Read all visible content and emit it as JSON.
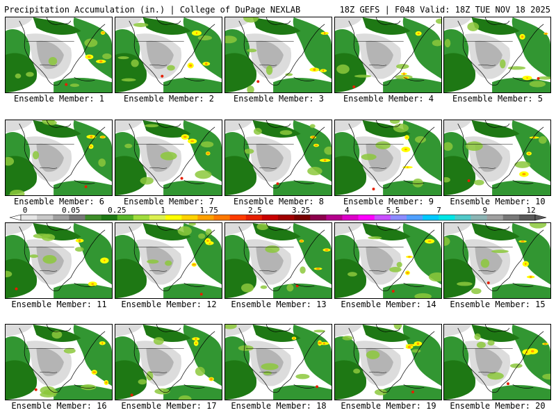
{
  "header": {
    "left": "Precipitation Accumulation (in.) | College of DuPage NEXLAB",
    "right": "18Z GEFS | F048 Valid: 18Z TUE NOV 18 2025"
  },
  "panels": [
    {
      "label": "Ensemble Member: 1"
    },
    {
      "label": "Ensemble Member: 2"
    },
    {
      "label": "Ensemble Member: 3"
    },
    {
      "label": "Ensemble Member: 4"
    },
    {
      "label": "Ensemble Member: 5"
    },
    {
      "label": "Ensemble Member: 6"
    },
    {
      "label": "Ensemble Member: 7"
    },
    {
      "label": "Ensemble Member: 8"
    },
    {
      "label": "Ensemble Member: 9"
    },
    {
      "label": "Ensemble Member: 10"
    },
    {
      "label": "Ensemble Member: 11"
    },
    {
      "label": "Ensemble Member: 12"
    },
    {
      "label": "Ensemble Member: 13"
    },
    {
      "label": "Ensemble Member: 14"
    },
    {
      "label": "Ensemble Member: 15"
    },
    {
      "label": "Ensemble Member: 16"
    },
    {
      "label": "Ensemble Member: 17"
    },
    {
      "label": "Ensemble Member: 18"
    },
    {
      "label": "Ensemble Member: 19"
    },
    {
      "label": "Ensemble Member: 20"
    }
  ],
  "legend": {
    "tick_labels": [
      "0",
      "0.05",
      "0.25",
      "1",
      "1.75",
      "2.5",
      "3.25",
      "4",
      "5.5",
      "7",
      "9",
      "12"
    ],
    "colors": [
      "#e6e6e6",
      "#c8c8c8",
      "#a0a0a0",
      "#787878",
      "#3c8c28",
      "#1e7814",
      "#58b428",
      "#a0dc3c",
      "#dcf050",
      "#ffff00",
      "#ffd200",
      "#ffa000",
      "#ff7800",
      "#ff3c00",
      "#e61e00",
      "#c80000",
      "#a00000",
      "#780000",
      "#8c004c",
      "#b4008c",
      "#dc00c8",
      "#ff00ff",
      "#c850ff",
      "#8c8cff",
      "#50a0ff",
      "#00c8ff",
      "#00e6e6",
      "#50c8c8",
      "#8cb4b4",
      "#a0a0a0",
      "#787878",
      "#5a5a5a"
    ]
  },
  "colors": {
    "ocean": "#ffffff",
    "land_gray": "#b4b4b4",
    "light_gray": "#dcdcdc",
    "green": "#329632",
    "dark_green": "#1e7814",
    "lime": "#8cc83c",
    "yellow": "#ffff00",
    "orange": "#ffa000",
    "red": "#e61e00",
    "border": "#000000"
  }
}
